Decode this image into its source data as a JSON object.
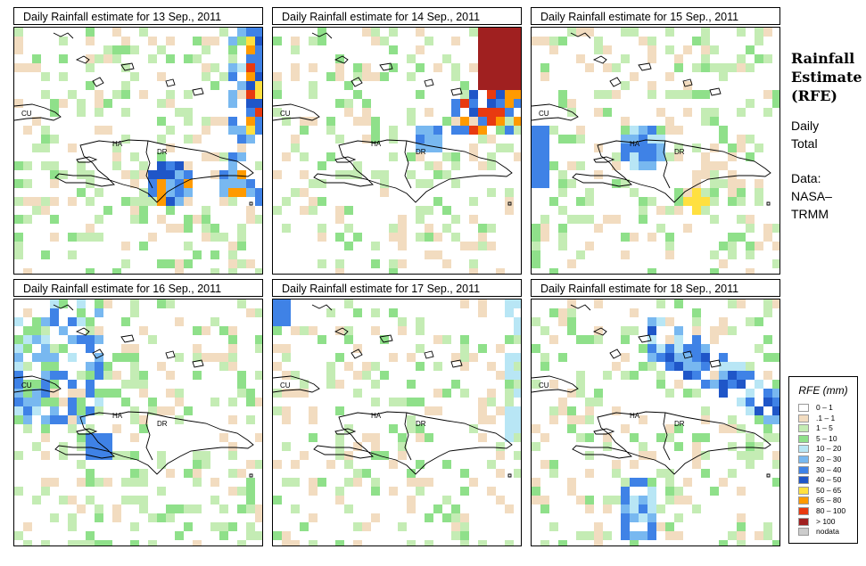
{
  "panels": [
    {
      "title": "Daily Rainfall estimate for  13 Sep., 2011",
      "seed": 13,
      "hot": "east-edge"
    },
    {
      "title": "Daily Rainfall estimate for  14 Sep., 2011",
      "seed": 14,
      "hot": "northeast"
    },
    {
      "title": "Daily Rainfall estimate for  15 Sep., 2011",
      "seed": 15,
      "hot": "haiti-core"
    },
    {
      "title": "Daily Rainfall estimate for  16 Sep., 2011",
      "seed": 16,
      "hot": "cuba-west"
    },
    {
      "title": "Daily Rainfall estimate for  17 Sep., 2011",
      "seed": 17,
      "hot": "sparse"
    },
    {
      "title": "Daily Rainfall estimate for  18 Sep., 2011",
      "seed": 18,
      "hot": "diagonal"
    }
  ],
  "map_labels": {
    "cuba": "CU",
    "haiti": "HA",
    "dominican_republic": "DR"
  },
  "side": {
    "title_lines": [
      "Rainfall",
      "Estimate",
      "(RFE)"
    ],
    "daily_lines": [
      "Daily",
      "Total"
    ],
    "data_lines": [
      "Data:",
      "NASA–",
      "TRMM"
    ]
  },
  "legend": {
    "title": "RFE (mm)",
    "items": [
      {
        "label": "0 – 1",
        "color": "#ffffff"
      },
      {
        "label": ".1 – 1",
        "color": "#f2dcc0"
      },
      {
        "label": "1 – 5",
        "color": "#c4ecb4"
      },
      {
        "label": "5 – 10",
        "color": "#8fe08a"
      },
      {
        "label": "10 – 20",
        "color": "#b8e6f5"
      },
      {
        "label": "20 – 30",
        "color": "#78b8f0"
      },
      {
        "label": "30 – 40",
        "color": "#3f82e6"
      },
      {
        "label": "40 – 50",
        "color": "#1f56c8"
      },
      {
        "label": "50 – 65",
        "color": "#ffe040"
      },
      {
        "label": "65 – 80",
        "color": "#ff9a00"
      },
      {
        "label": "80 – 100",
        "color": "#e83a10"
      },
      {
        "label": "> 100",
        "color": "#a02020"
      },
      {
        "label": "nodata",
        "color": "#cccccc"
      }
    ]
  }
}
